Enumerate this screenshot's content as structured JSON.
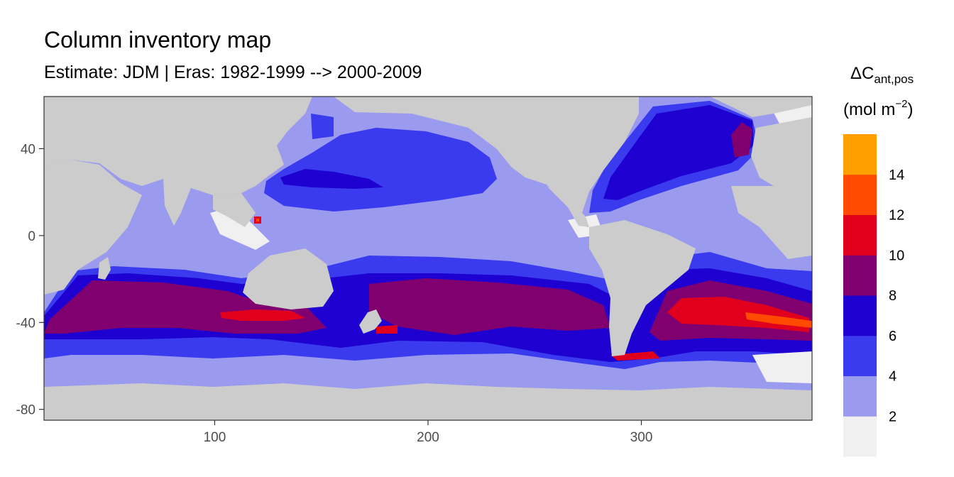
{
  "title": "Column inventory map",
  "subtitle": "Estimate: JDM  | Eras: 1982-1999 --> 2000-2009",
  "chart_data": {
    "type": "heatmap",
    "title": "Column inventory map",
    "subtitle": "Estimate: JDM  | Eras: 1982-1999 --> 2000-2009",
    "x_range": [
      20,
      380
    ],
    "y_range": [
      -85,
      64
    ],
    "x_ticks": [
      100,
      200,
      300
    ],
    "x_tick_labels": [
      "100",
      "200",
      "300"
    ],
    "y_ticks": [
      40,
      0,
      -40,
      -80
    ],
    "y_tick_labels": [
      "40",
      "0",
      "-40",
      "-80"
    ],
    "land_color": "#cccccc",
    "legend": {
      "title_main": "ΔC",
      "title_sub": "ant,pos",
      "unit_prefix": "(mol m",
      "unit_exp": "−2",
      "unit_suffix": ")",
      "placement": "right",
      "bins": [
        {
          "from": 0,
          "to": 2,
          "color": "#f0f0f0"
        },
        {
          "from": 2,
          "to": 4,
          "color": "#9a9aee"
        },
        {
          "from": 4,
          "to": 6,
          "color": "#3a3aee"
        },
        {
          "from": 6,
          "to": 8,
          "color": "#1e00d0"
        },
        {
          "from": 8,
          "to": 10,
          "color": "#800070"
        },
        {
          "from": 10,
          "to": 12,
          "color": "#e0001e"
        },
        {
          "from": 12,
          "to": 14,
          "color": "#ff4a00"
        },
        {
          "from": 14,
          "to": 16,
          "color": "#ffa000"
        }
      ],
      "labels": [
        "2",
        "4",
        "6",
        "8",
        "10",
        "12",
        "14"
      ]
    },
    "regions": [
      {
        "name": "north-pacific-band-a",
        "lon": [
          150,
          245
        ],
        "lat": [
          18,
          58
        ],
        "bin": 2
      },
      {
        "name": "north-pacific-band-b",
        "lon": [
          110,
          230
        ],
        "lat": [
          28,
          52
        ],
        "bin": 3
      },
      {
        "name": "north-atlantic-core",
        "lon": [
          285,
          345
        ],
        "lat": [
          20,
          62
        ],
        "bin": 3
      },
      {
        "name": "north-atlantic-hotspot",
        "lon": [
          335,
          348
        ],
        "lat": [
          42,
          52
        ],
        "bin": 4
      },
      {
        "name": "southern-ocean-band-6",
        "lon": [
          20,
          380
        ],
        "lat": [
          -68,
          -25
        ],
        "bin": 3
      },
      {
        "name": "southern-ocean-band-8",
        "lon": [
          40,
          300
        ],
        "lat": [
          -50,
          -30
        ],
        "bin": 4
      },
      {
        "name": "south-atlantic-hotspot",
        "lon": [
          315,
          375
        ],
        "lat": [
          -45,
          -33
        ],
        "bin": 5
      },
      {
        "name": "south-atlantic-max",
        "lon": [
          345,
          380
        ],
        "lat": [
          -42,
          -38
        ],
        "bin": 6
      },
      {
        "name": "south-of-australia",
        "lon": [
          100,
          145
        ],
        "lat": [
          -40,
          -35
        ],
        "bin": 5
      }
    ]
  }
}
